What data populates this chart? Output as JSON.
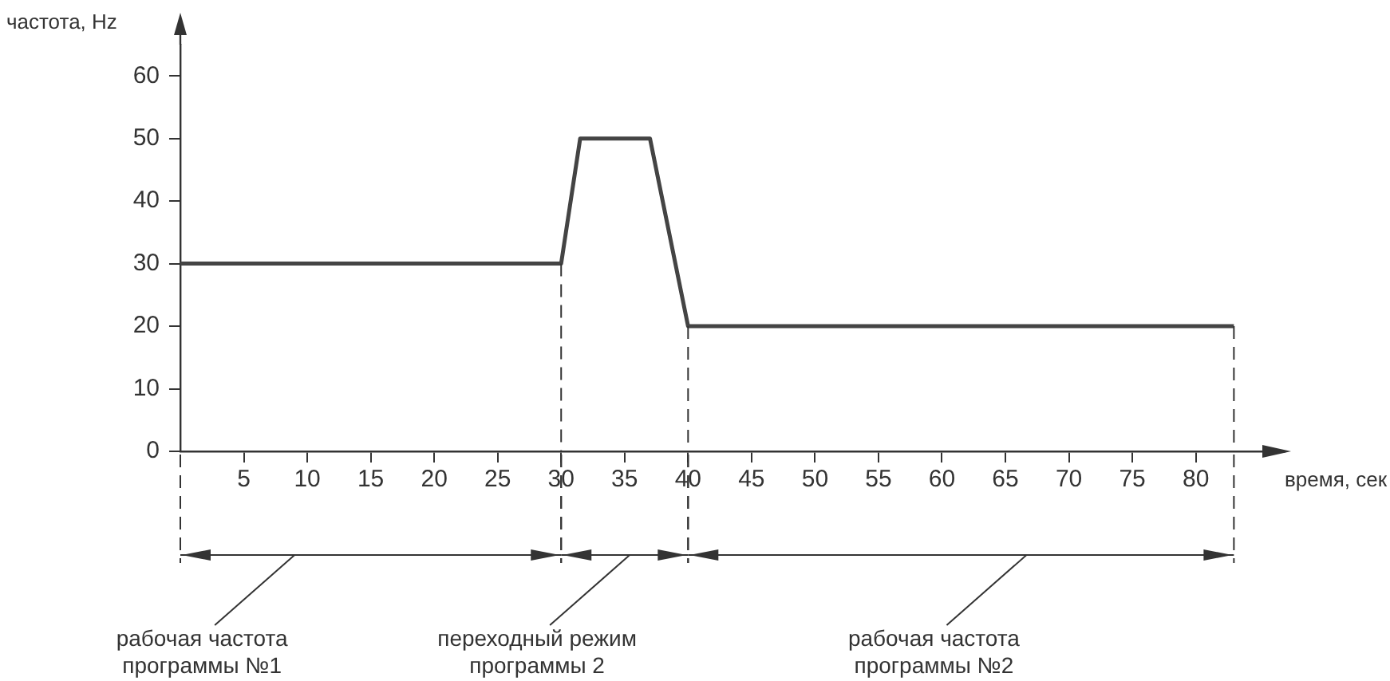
{
  "chart_data": {
    "type": "line",
    "xlabel": "время, сек",
    "ylabel": "частота, Hz",
    "x": [
      0,
      30,
      31.5,
      37,
      40,
      83
    ],
    "series": [
      {
        "color": "#444444",
        "values": [
          30,
          30,
          50,
          50,
          20,
          20
        ]
      }
    ],
    "xlim": [
      0,
      87
    ],
    "ylim": [
      0,
      65
    ],
    "xticks": [
      5,
      10,
      15,
      20,
      25,
      30,
      35,
      40,
      45,
      50,
      55,
      60,
      65,
      70,
      75,
      80
    ],
    "yticks": [
      0,
      10,
      20,
      30,
      40,
      50,
      60
    ],
    "ref_lines": [
      {
        "axis": "x",
        "value": 30,
        "line_style": "dashed"
      },
      {
        "axis": "x",
        "value": 40,
        "line_style": "dashed"
      },
      {
        "axis": "x",
        "value": 83,
        "line_style": "dashed"
      }
    ],
    "annotations": [
      "рабочая частота\nпрограммы №1",
      "переходный режим\nпрограммы 2",
      "рабочая частота\nпрограммы №2"
    ],
    "grid": false,
    "legend": false,
    "marker": "none",
    "line_style": "solid"
  }
}
